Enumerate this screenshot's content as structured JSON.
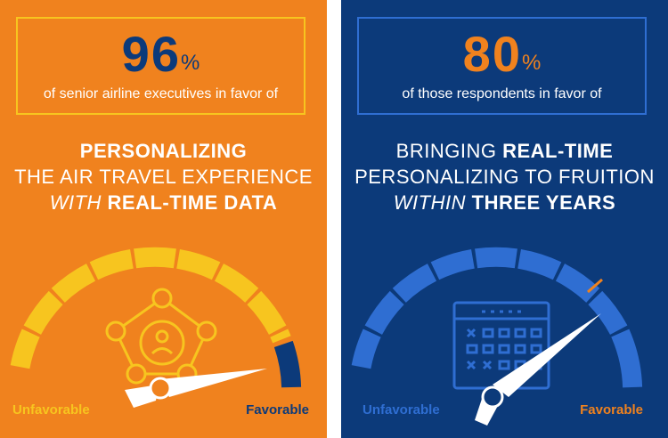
{
  "left": {
    "stat": {
      "number": "96",
      "unit": "%",
      "description": "of senior airline executives in favor of"
    },
    "headline": {
      "line1_bold": "PERSONALIZING",
      "line2": "THE AIR TRAVEL EXPERIENCE",
      "line3_italic": "WITH",
      "line3_bold": "REAL-TIME DATA"
    },
    "gauge": {
      "label_unfavorable": "Unfavorable",
      "label_favorable": "Favorable",
      "favorable_share": 0.96,
      "icon": "user-network-icon"
    }
  },
  "right": {
    "stat": {
      "number": "80",
      "unit": "%",
      "description": "of those respondents in favor of"
    },
    "headline": {
      "line1": "BRINGING",
      "line1_bold": "REAL-TIME",
      "line2": "PERSONALIZING TO FRUITION",
      "line3_italic": "WITHIN",
      "line3_bold": "THREE YEARS"
    },
    "gauge": {
      "label_unfavorable": "Unfavorable",
      "label_favorable": "Favorable",
      "favorable_share": 0.8,
      "icon": "calendar-icon"
    }
  },
  "colors": {
    "orange": "#f0821e",
    "navy": "#0c3a7a",
    "yellow": "#f7c51f",
    "light_blue": "#2f6ed2",
    "white": "#ffffff"
  }
}
